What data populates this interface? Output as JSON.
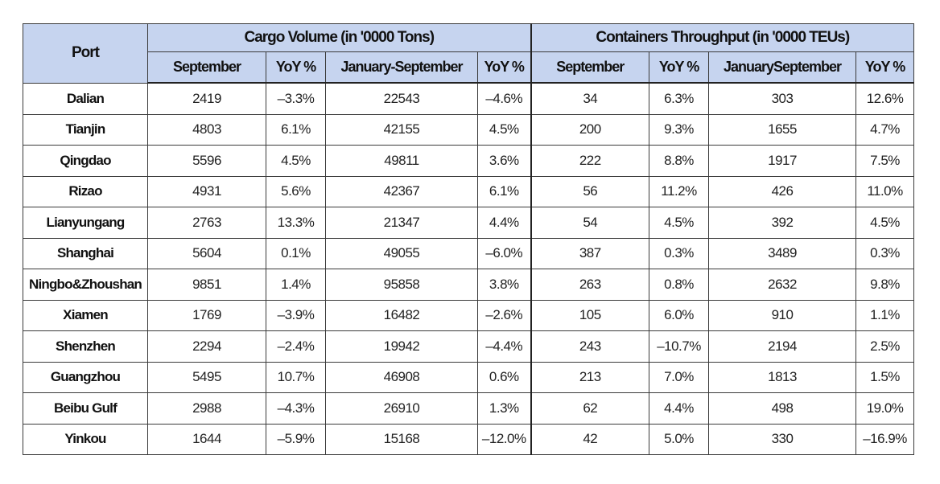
{
  "headers": {
    "port": "Port",
    "cargo_group": "Cargo Volume (in '0000 Tons)",
    "container_group": "Containers Throughput (in '0000 TEUs)",
    "sub": [
      "September",
      "YoY %",
      "January-September",
      "YoY %",
      "September",
      "YoY %",
      "JanuarySeptember",
      "YoY %"
    ]
  },
  "rows": [
    {
      "port": "Dalian",
      "cells": [
        "2419",
        "–3.3%",
        "22543",
        "–4.6%",
        "34",
        "6.3%",
        "303",
        "12.6%"
      ]
    },
    {
      "port": "Tianjin",
      "cells": [
        "4803",
        "6.1%",
        "42155",
        "4.5%",
        "200",
        "9.3%",
        "1655",
        "4.7%"
      ]
    },
    {
      "port": "Qingdao",
      "cells": [
        "5596",
        "4.5%",
        "49811",
        "3.6%",
        "222",
        "8.8%",
        "1917",
        "7.5%"
      ]
    },
    {
      "port": "Rizao",
      "cells": [
        "4931",
        "5.6%",
        "42367",
        "6.1%",
        "56",
        "11.2%",
        "426",
        "11.0%"
      ]
    },
    {
      "port": "Lianyungang",
      "cells": [
        "2763",
        "13.3%",
        "21347",
        "4.4%",
        "54",
        "4.5%",
        "392",
        "4.5%"
      ]
    },
    {
      "port": "Shanghai",
      "cells": [
        "5604",
        "0.1%",
        "49055",
        "–6.0%",
        "387",
        "0.3%",
        "3489",
        "0.3%"
      ]
    },
    {
      "port": "Ningbo&Zhoushan",
      "cells": [
        "9851",
        "1.4%",
        "95858",
        "3.8%",
        "263",
        "0.8%",
        "2632",
        "9.8%"
      ]
    },
    {
      "port": "Xiamen",
      "cells": [
        "1769",
        "–3.9%",
        "16482",
        "–2.6%",
        "105",
        "6.0%",
        "910",
        "1.1%"
      ]
    },
    {
      "port": "Shenzhen",
      "cells": [
        "2294",
        "–2.4%",
        "19942",
        "–4.4%",
        "243",
        "–10.7%",
        "2194",
        "2.5%"
      ]
    },
    {
      "port": "Guangzhou",
      "cells": [
        "5495",
        "10.7%",
        "46908",
        "0.6%",
        "213",
        "7.0%",
        "1813",
        "1.5%"
      ]
    },
    {
      "port": "Beibu Gulf",
      "cells": [
        "2988",
        "–4.3%",
        "26910",
        "1.3%",
        "62",
        "4.4%",
        "498",
        "19.0%"
      ]
    },
    {
      "port": "Yinkou",
      "cells": [
        "1644",
        "–5.9%",
        "15168",
        "–12.0%",
        "42",
        "5.0%",
        "330",
        "–16.9%"
      ]
    }
  ]
}
